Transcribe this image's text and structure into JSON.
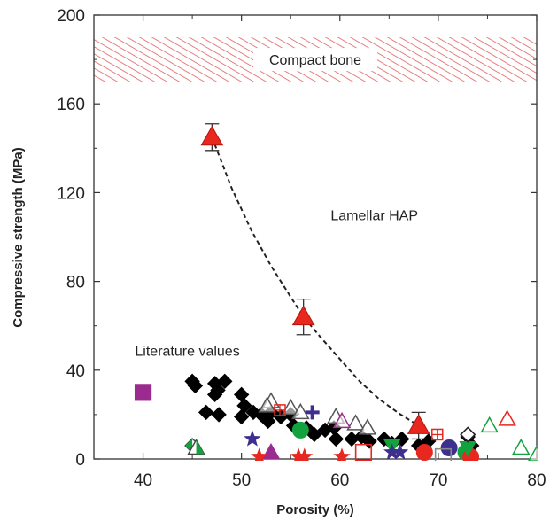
{
  "chart_data": {
    "type": "scatter",
    "xlabel": "Porosity (%)",
    "ylabel": "Compressive strength (MPa)",
    "xlim": [
      35,
      80
    ],
    "ylim": [
      0,
      200
    ],
    "x_ticks": [
      "40",
      "50",
      "60",
      "70",
      "80"
    ],
    "y_ticks": [
      "0",
      "40",
      "80",
      "120",
      "160",
      "200"
    ],
    "grid": false,
    "band": {
      "label": "Compact bone",
      "y_range": [
        170,
        190
      ]
    },
    "annotations": [
      {
        "text": "Lamellar HAP",
        "x": 63.5,
        "y": 110
      },
      {
        "text": "Literature values",
        "x": 44.5,
        "y": 49
      }
    ],
    "lamellar_hap": {
      "points": [
        {
          "x": 47,
          "y": 145,
          "err": 6
        },
        {
          "x": 56.3,
          "y": 64,
          "err": 8
        },
        {
          "x": 68,
          "y": 15,
          "err": 6
        }
      ],
      "color": "#e8271f",
      "trend": [
        [
          47,
          145
        ],
        [
          49,
          122
        ],
        [
          51,
          103
        ],
        [
          53,
          87
        ],
        [
          55,
          73
        ],
        [
          56.3,
          64
        ],
        [
          58,
          55
        ],
        [
          60,
          45
        ],
        [
          62,
          35
        ],
        [
          64,
          27
        ],
        [
          66,
          20.5
        ],
        [
          68,
          15
        ]
      ]
    },
    "literature": [
      {
        "marker": "diamond",
        "fill": "#000000",
        "stroke": "#000000",
        "x": 45,
        "y": 35
      },
      {
        "marker": "diamond",
        "fill": "#000000",
        "stroke": "#000000",
        "x": 45.3,
        "y": 33
      },
      {
        "marker": "diamond",
        "fill": "#000000",
        "stroke": "#000000",
        "x": 47.3,
        "y": 34
      },
      {
        "marker": "diamond",
        "fill": "#000000",
        "stroke": "#000000",
        "x": 47.6,
        "y": 31
      },
      {
        "marker": "diamond",
        "fill": "#000000",
        "stroke": "#000000",
        "x": 48.3,
        "y": 35
      },
      {
        "marker": "diamond",
        "fill": "#000000",
        "stroke": "#000000",
        "x": 47.3,
        "y": 29
      },
      {
        "marker": "diamond",
        "fill": "#000000",
        "stroke": "#000000",
        "x": 46.4,
        "y": 21
      },
      {
        "marker": "diamond",
        "fill": "#000000",
        "stroke": "#000000",
        "x": 47.7,
        "y": 20
      },
      {
        "marker": "diamond",
        "fill": "#000000",
        "stroke": "#000000",
        "x": 50,
        "y": 29
      },
      {
        "marker": "diamond",
        "fill": "#000000",
        "stroke": "#000000",
        "x": 50.3,
        "y": 24
      },
      {
        "marker": "diamond",
        "fill": "#000000",
        "stroke": "#000000",
        "x": 50,
        "y": 19
      },
      {
        "marker": "diamond",
        "fill": "#000000",
        "stroke": "#000000",
        "x": 51.2,
        "y": 21
      },
      {
        "marker": "diamond",
        "fill": "#000000",
        "stroke": "#000000",
        "x": 52,
        "y": 20
      },
      {
        "marker": "diamond",
        "fill": "#000000",
        "stroke": "#000000",
        "x": 53,
        "y": 21
      },
      {
        "marker": "diamond",
        "fill": "#000000",
        "stroke": "#000000",
        "x": 52.7,
        "y": 17
      },
      {
        "marker": "diamond",
        "fill": "#000000",
        "stroke": "#000000",
        "x": 54,
        "y": 19
      },
      {
        "marker": "diamond",
        "fill": "#000000",
        "stroke": "#000000",
        "x": 55,
        "y": 20
      },
      {
        "marker": "diamond",
        "fill": "#000000",
        "stroke": "#000000",
        "x": 55.3,
        "y": 15
      },
      {
        "marker": "diamond",
        "fill": "#000000",
        "stroke": "#000000",
        "x": 56.6,
        "y": 14
      },
      {
        "marker": "diamond",
        "fill": "#000000",
        "stroke": "#000000",
        "x": 57.4,
        "y": 11
      },
      {
        "marker": "diamond",
        "fill": "#000000",
        "stroke": "#000000",
        "x": 58.5,
        "y": 13
      },
      {
        "marker": "diamond",
        "fill": "#000000",
        "stroke": "#000000",
        "x": 59.4,
        "y": 14
      },
      {
        "marker": "diamond",
        "fill": "#000000",
        "stroke": "#000000",
        "x": 59.6,
        "y": 9
      },
      {
        "marker": "diamond",
        "fill": "#000000",
        "stroke": "#000000",
        "x": 61.2,
        "y": 9
      },
      {
        "marker": "diamond",
        "fill": "#000000",
        "stroke": "#000000",
        "x": 62.2,
        "y": 10
      },
      {
        "marker": "diamond",
        "fill": "#000000",
        "stroke": "#000000",
        "x": 63,
        "y": 8
      },
      {
        "marker": "diamond",
        "fill": "#000000",
        "stroke": "#000000",
        "x": 64.5,
        "y": 9
      },
      {
        "marker": "diamond",
        "fill": "#000000",
        "stroke": "#000000",
        "x": 65.3,
        "y": 7
      },
      {
        "marker": "diamond",
        "fill": "#000000",
        "stroke": "#000000",
        "x": 66.3,
        "y": 9
      },
      {
        "marker": "diamond",
        "fill": "#000000",
        "stroke": "#000000",
        "x": 68,
        "y": 6
      },
      {
        "marker": "diamond",
        "fill": "#000000",
        "stroke": "#000000",
        "x": 69,
        "y": 8
      },
      {
        "marker": "diamond",
        "fill": "#000000",
        "stroke": "#000000",
        "x": 73,
        "y": 10
      },
      {
        "marker": "diamond",
        "fill": "#000000",
        "stroke": "#000000",
        "x": 73.4,
        "y": 6
      },
      {
        "marker": "square",
        "fill": "#9b2b8f",
        "stroke": "#9b2b8f",
        "x": 40,
        "y": 30
      },
      {
        "marker": "triangle-up",
        "fill": "none",
        "stroke": "#555555",
        "x": 53,
        "y": 26
      },
      {
        "marker": "triangle-up",
        "fill": "none",
        "stroke": "#555555",
        "x": 52.6,
        "y": 24
      },
      {
        "marker": "triangle-up",
        "fill": "none",
        "stroke": "#555555",
        "x": 55,
        "y": 23
      },
      {
        "marker": "triangle-up",
        "fill": "none",
        "stroke": "#555555",
        "x": 56,
        "y": 21
      },
      {
        "marker": "triangle-up",
        "fill": "none",
        "stroke": "#555555",
        "x": 59.6,
        "y": 19
      },
      {
        "marker": "triangle-up",
        "fill": "none",
        "stroke": "#555555",
        "x": 61.6,
        "y": 16
      },
      {
        "marker": "triangle-up",
        "fill": "none",
        "stroke": "#555555",
        "x": 62.8,
        "y": 14
      },
      {
        "marker": "triangle-up",
        "fill": "#9b2b8f",
        "stroke": "#9b2b8f",
        "x": 53,
        "y": 3
      },
      {
        "marker": "triangle-up",
        "fill": "none",
        "stroke": "#9b2b8f",
        "x": 60.2,
        "y": 17
      },
      {
        "marker": "triangle-up",
        "fill": "none",
        "stroke": "#e8271f",
        "x": 77,
        "y": 18
      },
      {
        "marker": "triangle-up",
        "fill": "none",
        "stroke": "#12a33e",
        "x": 75.2,
        "y": 15
      },
      {
        "marker": "triangle-up",
        "fill": "none",
        "stroke": "#12a33e",
        "x": 78.4,
        "y": 5
      },
      {
        "marker": "triangle-up",
        "fill": "none",
        "stroke": "#12a33e",
        "x": 80,
        "y": 2
      },
      {
        "marker": "circle",
        "fill": "#12a33e",
        "stroke": "#12a33e",
        "x": 56,
        "y": 13
      },
      {
        "marker": "circle",
        "fill": "#12a33e",
        "stroke": "#12a33e",
        "x": 72.8,
        "y": 3
      },
      {
        "marker": "circle",
        "fill": "#3d2f8f",
        "stroke": "#3d2f8f",
        "x": 71.1,
        "y": 5
      },
      {
        "marker": "circle",
        "fill": "#e8271f",
        "stroke": "#e8271f",
        "x": 68.6,
        "y": 3
      },
      {
        "marker": "circle",
        "fill": "#e8271f",
        "stroke": "#e8271f",
        "x": 73.3,
        "y": 1
      },
      {
        "marker": "triangle-down",
        "fill": "#12a33e",
        "stroke": "#12a33e",
        "x": 65.3,
        "y": 6
      },
      {
        "marker": "triangle-down",
        "fill": "#12a33e",
        "stroke": "#12a33e",
        "x": 73,
        "y": 5
      },
      {
        "marker": "star",
        "fill": "#3d2f8f",
        "stroke": "#3d2f8f",
        "x": 51.1,
        "y": 9
      },
      {
        "marker": "star",
        "fill": "#3d2f8f",
        "stroke": "#3d2f8f",
        "x": 65.3,
        "y": 3
      },
      {
        "marker": "star",
        "fill": "#3d2f8f",
        "stroke": "#3d2f8f",
        "x": 66.1,
        "y": 3
      },
      {
        "marker": "star",
        "fill": "#e8271f",
        "stroke": "#e8271f",
        "x": 51.8,
        "y": 1
      },
      {
        "marker": "star",
        "fill": "#e8271f",
        "stroke": "#e8271f",
        "x": 55.8,
        "y": 1
      },
      {
        "marker": "star",
        "fill": "#e8271f",
        "stroke": "#e8271f",
        "x": 56.4,
        "y": 1
      },
      {
        "marker": "star",
        "fill": "#e8271f",
        "stroke": "#e8271f",
        "x": 60.2,
        "y": 1
      },
      {
        "marker": "plus",
        "fill": "#3d2f8f",
        "stroke": "#3d2f8f",
        "x": 57.2,
        "y": 21
      },
      {
        "marker": "square-cross",
        "fill": "none",
        "stroke": "#e8271f",
        "x": 53.9,
        "y": 22
      },
      {
        "marker": "square-cross",
        "fill": "none",
        "stroke": "#e8271f",
        "x": 69.9,
        "y": 11
      },
      {
        "marker": "square",
        "fill": "none",
        "stroke": "#e8271f",
        "x": 62.4,
        "y": 3
      },
      {
        "marker": "square",
        "fill": "none",
        "stroke": "#888888",
        "x": 70.5,
        "y": 1
      },
      {
        "marker": "diamond-open",
        "fill": "none",
        "stroke": "#222222",
        "x": 73,
        "y": 11
      },
      {
        "marker": "diamond-half",
        "fill": "#12a33e",
        "stroke": "#444444",
        "x": 45,
        "y": 6
      },
      {
        "marker": "triangle-half",
        "fill": "#12a33e",
        "stroke": "#444444",
        "x": 45.4,
        "y": 5
      }
    ]
  }
}
